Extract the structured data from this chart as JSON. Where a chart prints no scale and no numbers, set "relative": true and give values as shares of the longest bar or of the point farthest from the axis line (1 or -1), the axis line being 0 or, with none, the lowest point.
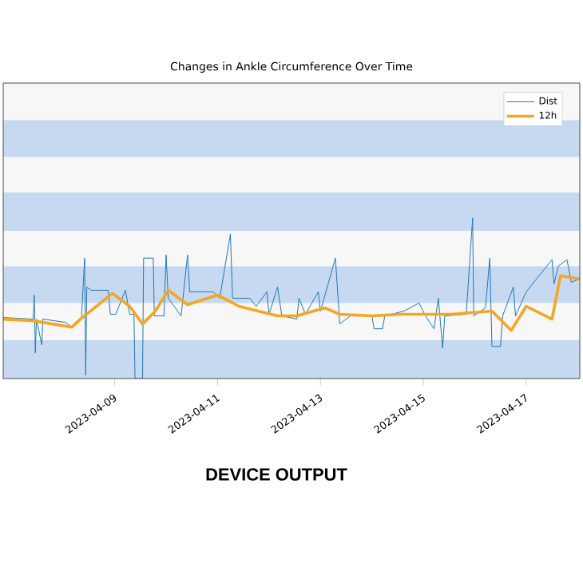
{
  "chart_data": {
    "type": "line",
    "title": "Changes in Ankle Circumference Over Time",
    "relative": true,
    "legend": "top right",
    "xlim": [
      "2023-04-06T20:00",
      "2023-04-18T01:00"
    ],
    "xticks": [
      "2023-04-09",
      "2023-04-11",
      "2023-04-13",
      "2023-04-15",
      "2023-04-17"
    ],
    "bands": [
      {
        "axis": "y",
        "from": 0,
        "to": 0.24,
        "color": "#c6d9f1"
      },
      {
        "axis": "y",
        "from": 0.24,
        "to": 0.47,
        "color": "#f7f7f7"
      },
      {
        "axis": "y",
        "from": 0.47,
        "to": 0.7,
        "color": "#c6d9f1"
      },
      {
        "axis": "y",
        "from": 0.7,
        "to": 0.92,
        "color": "#f7f7f7"
      },
      {
        "axis": "y",
        "from": 0.92,
        "to": 1.16,
        "color": "#c6d9f1"
      },
      {
        "axis": "y",
        "from": 1.16,
        "to": 1.38,
        "color": "#f7f7f7"
      },
      {
        "axis": "y",
        "from": 1.38,
        "to": 1.61,
        "color": "#c6d9f1"
      },
      {
        "axis": "y",
        "from": 1.61,
        "to": 1.84,
        "color": "#f7f7f7"
      }
    ],
    "annotations": [
      "DEVICE OUTPUT"
    ],
    "series": [
      {
        "name": "Dist",
        "color": "#1f77b4",
        "x": [
          "2023-04-06T20:00",
          "2023-04-07T10:00",
          "2023-04-07T10:30",
          "2023-04-07T11:00",
          "2023-04-07T11:30",
          "2023-04-07T14:00",
          "2023-04-07T14:30",
          "2023-04-08T01:00",
          "2023-04-08T04:00",
          "2023-04-08T08:30",
          "2023-04-08T10:00",
          "2023-04-08T10:30",
          "2023-04-08T11:00",
          "2023-04-08T13:00",
          "2023-04-08T21:00",
          "2023-04-08T22:00",
          "2023-04-09T00:30",
          "2023-04-09T05:00",
          "2023-04-09T07:00",
          "2023-04-09T09:00",
          "2023-04-09T09:30",
          "2023-04-09T13:00",
          "2023-04-09T13:30",
          "2023-04-09T18:00",
          "2023-04-09T18:30",
          "2023-04-09T23:00",
          "2023-04-10T00:00",
          "2023-04-10T01:00",
          "2023-04-10T07:00",
          "2023-04-10T10:00",
          "2023-04-10T11:00",
          "2023-04-10T22:00",
          "2023-04-11T01:00",
          "2023-04-11T06:00",
          "2023-04-11T07:00",
          "2023-04-11T15:00",
          "2023-04-11T18:00",
          "2023-04-11T23:00",
          "2023-04-12T00:00",
          "2023-04-12T04:00",
          "2023-04-12T06:00",
          "2023-04-12T13:00",
          "2023-04-12T14:00",
          "2023-04-12T17:00",
          "2023-04-12T23:00",
          "2023-04-13T00:00",
          "2023-04-13T07:00",
          "2023-04-13T09:00",
          "2023-04-13T14:00",
          "2023-04-14T00:00",
          "2023-04-14T01:00",
          "2023-04-14T05:00",
          "2023-04-14T06:00",
          "2023-04-14T15:00",
          "2023-04-14T22:00",
          "2023-04-15T01:00",
          "2023-04-15T05:00",
          "2023-04-15T07:00",
          "2023-04-15T09:00",
          "2023-04-15T10:00",
          "2023-04-15T20:00",
          "2023-04-15T23:00",
          "2023-04-15T23:30",
          "2023-04-16T05:00",
          "2023-04-16T07:00",
          "2023-04-16T08:00",
          "2023-04-16T12:00",
          "2023-04-16T13:00",
          "2023-04-16T18:00",
          "2023-04-16T19:00",
          "2023-04-17T00:00",
          "2023-04-17T12:00",
          "2023-04-17T13:00",
          "2023-04-17T15:00",
          "2023-04-17T19:00",
          "2023-04-17T21:00",
          "2023-04-18T01:00"
        ],
        "values": [
          0.38,
          0.37,
          0.52,
          0.16,
          0.37,
          0.21,
          0.37,
          0.35,
          0.32,
          0.37,
          0.75,
          0.02,
          0.57,
          0.55,
          0.55,
          0.4,
          0.4,
          0.55,
          0.4,
          0.4,
          0,
          0,
          0.75,
          0.75,
          0.39,
          0.39,
          0.77,
          0.5,
          0.39,
          0.77,
          0.54,
          0.54,
          0.5,
          0.9,
          0.5,
          0.5,
          0.45,
          0.54,
          0.4,
          0.57,
          0.39,
          0.37,
          0.5,
          0.4,
          0.54,
          0.42,
          0.75,
          0.34,
          0.39,
          0.39,
          0.31,
          0.31,
          0.39,
          0.42,
          0.47,
          0.39,
          0.31,
          0.5,
          0.19,
          0.39,
          0.4,
          1.0,
          0.39,
          0.44,
          0.75,
          0.2,
          0.2,
          0.39,
          0.57,
          0.39,
          0.54,
          0.74,
          0.59,
          0.7,
          0.74,
          0.6,
          0.62
        ]
      },
      {
        "name": "12h",
        "color": "#f5a623",
        "x": [
          "2023-04-06T20:00",
          "2023-04-07T10:00",
          "2023-04-08T04:00",
          "2023-04-08T08:00",
          "2023-04-08T23:00",
          "2023-04-09T07:00",
          "2023-04-09T13:00",
          "2023-04-09T19:00",
          "2023-04-10T01:00",
          "2023-04-10T10:00",
          "2023-04-11T00:00",
          "2023-04-11T10:00",
          "2023-04-12T04:00",
          "2023-04-12T13:00",
          "2023-04-13T02:00",
          "2023-04-13T09:00",
          "2023-04-14T00:00",
          "2023-04-14T14:00",
          "2023-04-15T13:00",
          "2023-04-16T08:00",
          "2023-04-16T17:00",
          "2023-04-17T00:00",
          "2023-04-17T12:00",
          "2023-04-17T16:00",
          "2023-04-18T01:00"
        ],
        "values": [
          0.37,
          0.36,
          0.32,
          0.37,
          0.53,
          0.45,
          0.34,
          0.42,
          0.55,
          0.46,
          0.52,
          0.45,
          0.39,
          0.39,
          0.44,
          0.4,
          0.39,
          0.4,
          0.4,
          0.42,
          0.3,
          0.45,
          0.37,
          0.64,
          0.62
        ]
      }
    ]
  }
}
